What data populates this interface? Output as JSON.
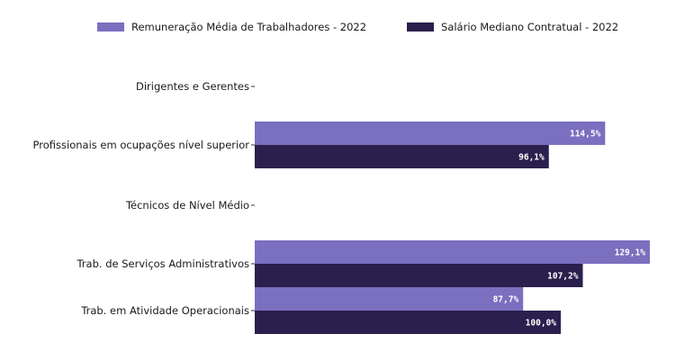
{
  "chart_data": {
    "type": "bar",
    "orientation": "horizontal",
    "categories": [
      "Dirigentes e Gerentes",
      "Profissionais em ocupações nível superior",
      "Técnicos de Nível Médio",
      "Trab. de Serviços Administrativos",
      "Trab. em Atividade Operacionais"
    ],
    "series": [
      {
        "name": "Remuneração Média de Trabalhadores - 2022",
        "color": "#7b6fbf",
        "values": [
          null,
          114.5,
          null,
          129.1,
          87.7
        ],
        "labels": [
          "",
          "114,5%",
          "",
          "129,1%",
          "87,7%"
        ]
      },
      {
        "name": "Salário Mediano Contratual - 2022",
        "color": "#2b1f4d",
        "values": [
          null,
          96.1,
          null,
          107.2,
          100.0
        ],
        "labels": [
          "",
          "96,1%",
          "",
          "107,2%",
          "100,0%"
        ]
      }
    ],
    "xlim": [
      0,
      130
    ],
    "grid": false,
    "legend_position": "top-center"
  }
}
